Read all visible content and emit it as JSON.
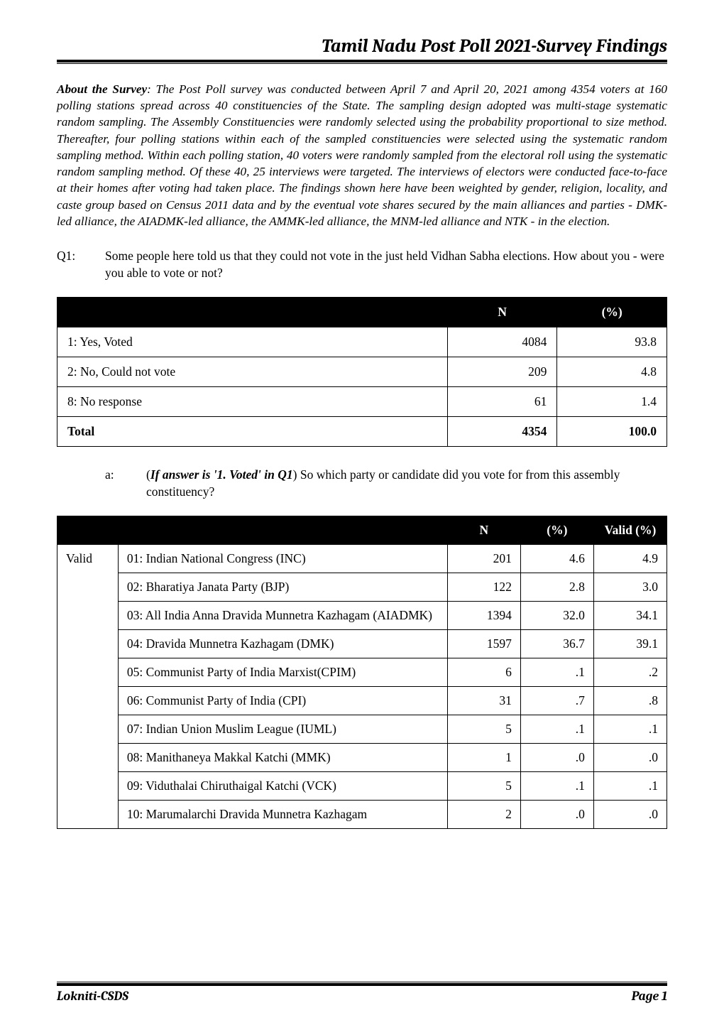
{
  "header": {
    "title": "Tamil Nadu Post Poll 2021-Survey Findings"
  },
  "about": {
    "lead": "About the Survey",
    "text": ": The Post Poll survey was conducted between April 7 and April 20, 2021 among 4354 voters at 160 polling stations spread across 40 constituencies of the State. The sampling design adopted was multi-stage systematic random sampling. The Assembly Constituencies were randomly selected using the probability proportional to size method. Thereafter, four polling stations within each of the sampled constituencies were selected using the systematic random sampling method. Within each polling station, 40 voters were randomly sampled from the electoral roll using the systematic random sampling method. Of these 40, 25 interviews were targeted. The interviews of electors were conducted face-to-face at their homes after voting had taken place. The findings shown here have been weighted by gender, religion, locality, and caste group based on Census 2011 data and by the eventual vote shares secured by the main alliances and parties - DMK-led alliance, the AIADMK-led alliance, the AMMK-led alliance, the MNM-led alliance and NTK - in the election."
  },
  "q1": {
    "label": "Q1:",
    "text": "Some people here told us that they could not vote in the just held Vidhan Sabha elections. How about you - were you able to vote or not?"
  },
  "table1": {
    "headers": {
      "n": "N",
      "pct": "(%)"
    },
    "rows": [
      {
        "label": "1: Yes, Voted",
        "n": "4084",
        "pct": "93.8"
      },
      {
        "label": "2: No, Could not vote",
        "n": "209",
        "pct": "4.8"
      },
      {
        "label": "8: No response",
        "n": "61",
        "pct": "1.4"
      }
    ],
    "total": {
      "label": "Total",
      "n": "4354",
      "pct": "100.0"
    }
  },
  "sub_a": {
    "label": "a:",
    "pre": "(",
    "bold": "If answer is '1. Voted' in Q1",
    "post": ") So which party or candidate did you vote for from this assembly constituency?"
  },
  "table2": {
    "headers": {
      "n": "N",
      "pct": "(%)",
      "valid": "Valid (%)"
    },
    "category": "Valid",
    "rows": [
      {
        "label": "01: Indian National Congress (INC)",
        "n": "201",
        "pct": "4.6",
        "valid": "4.9"
      },
      {
        "label": "02: Bharatiya Janata Party (BJP)",
        "n": "122",
        "pct": "2.8",
        "valid": "3.0"
      },
      {
        "label": "03: All India Anna Dravida Munnetra Kazhagam (AIADMK)",
        "n": "1394",
        "pct": "32.0",
        "valid": "34.1"
      },
      {
        "label": "04: Dravida Munnetra Kazhagam (DMK)",
        "n": "1597",
        "pct": "36.7",
        "valid": "39.1"
      },
      {
        "label": "05: Communist Party of India Marxist(CPIM)",
        "n": "6",
        "pct": ".1",
        "valid": ".2"
      },
      {
        "label": "06: Communist Party of India (CPI)",
        "n": "31",
        "pct": ".7",
        "valid": ".8"
      },
      {
        "label": "07: Indian Union Muslim League (IUML)",
        "n": "5",
        "pct": ".1",
        "valid": ".1"
      },
      {
        "label": "08: Manithaneya Makkal Katchi (MMK)",
        "n": "1",
        "pct": ".0",
        "valid": ".0"
      },
      {
        "label": "09: Viduthalai Chiruthaigal Katchi (VCK)",
        "n": "5",
        "pct": ".1",
        "valid": ".1"
      },
      {
        "label": "10: Marumalarchi Dravida Munnetra Kazhagam",
        "n": "2",
        "pct": ".0",
        "valid": ".0"
      }
    ]
  },
  "footer": {
    "left": "Lokniti-CSDS",
    "right": "Page 1"
  }
}
